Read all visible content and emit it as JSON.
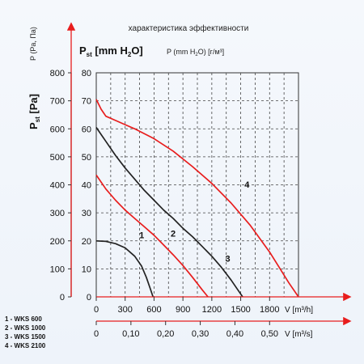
{
  "chart_data": {
    "type": "line",
    "title": "характеристика эффективности",
    "header_left": "P (Pa, Па)",
    "ylabel_mm_main": "P",
    "ylabel_mm_sub": "st",
    "ylabel_mm_unit": " [mm H",
    "ylabel_mm_2": "2",
    "ylabel_mm_close": "O]",
    "ylabel_mm_alt_a": "P (mm H",
    "ylabel_mm_alt_2": "2",
    "ylabel_mm_alt_b": "O) [г/м³]",
    "ylabel_pa": "P",
    "ylabel_pa_sub": "st",
    "ylabel_pa_unit": " [Pa]",
    "y_pa_ticks": [
      0,
      100,
      200,
      300,
      400,
      500,
      600,
      700,
      800
    ],
    "y_mm_ticks": [
      0,
      10,
      20,
      30,
      40,
      50,
      60,
      70,
      80
    ],
    "x_flow_ticks": [
      0,
      300,
      600,
      900,
      1200,
      1500,
      1800
    ],
    "x_flow_label": "V [m³/h]",
    "x_flow_lim": [
      0,
      2100
    ],
    "x_flow2_ticks": [
      "0",
      "0,10",
      "0,20",
      "0,30",
      "0,40",
      "0,50"
    ],
    "x_flow2_label": "V [m³/s]",
    "ylim_pa": [
      0,
      800
    ],
    "grid": true,
    "series": [
      {
        "name": "1",
        "color": "#222222",
        "x": [
          0,
          100,
          200,
          300,
          400,
          470,
          520,
          560,
          590
        ],
        "y": [
          200,
          198,
          190,
          175,
          145,
          110,
          70,
          30,
          0
        ]
      },
      {
        "name": "2",
        "color": "#e81d1d",
        "x": [
          0,
          100,
          200,
          300,
          400,
          500,
          600,
          700,
          800,
          900,
          1000,
          1100,
          1160
        ],
        "y": [
          435,
          385,
          345,
          310,
          280,
          250,
          220,
          185,
          150,
          112,
          70,
          25,
          0
        ]
      },
      {
        "name": "3",
        "color": "#222222",
        "x": [
          0,
          100,
          200,
          300,
          400,
          500,
          600,
          700,
          800,
          900,
          1000,
          1100,
          1200,
          1300,
          1400,
          1470,
          1520
        ],
        "y": [
          605,
          555,
          505,
          460,
          420,
          380,
          345,
          310,
          280,
          245,
          215,
          180,
          145,
          105,
          60,
          25,
          0
        ]
      },
      {
        "name": "4",
        "color": "#e81d1d",
        "x": [
          0,
          50,
          100,
          200,
          300,
          400,
          600,
          800,
          1000,
          1200,
          1400,
          1600,
          1800,
          1900,
          2000,
          2100
        ],
        "y": [
          705,
          670,
          645,
          630,
          615,
          600,
          565,
          520,
          465,
          405,
          335,
          255,
          160,
          105,
          50,
          0
        ]
      }
    ],
    "legend_entries": [
      "1 - WKS 600",
      "2 - WKS 1000",
      "3 - WKS 1500",
      "4 - WKS 2100"
    ]
  }
}
